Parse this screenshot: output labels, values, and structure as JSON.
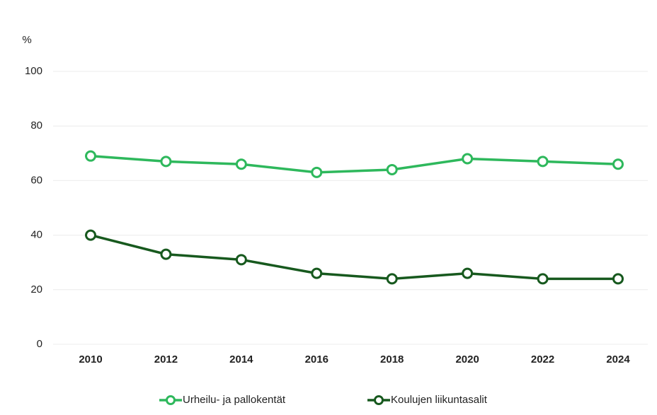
{
  "chart_data": {
    "type": "line",
    "y_axis_label": "%",
    "categories": [
      "2010",
      "2012",
      "2014",
      "2016",
      "2018",
      "2020",
      "2022",
      "2024"
    ],
    "series": [
      {
        "name": "Urheilu- ja pallokentät",
        "color": "#2eb85c",
        "values": [
          69,
          67,
          66,
          63,
          64,
          68,
          67,
          66
        ]
      },
      {
        "name": "Koulujen liikuntasalit",
        "color": "#17591e",
        "values": [
          40,
          33,
          31,
          26,
          24,
          26,
          24,
          24
        ]
      }
    ],
    "ylim": [
      0,
      100
    ],
    "yticks": [
      0,
      20,
      40,
      60,
      80,
      100
    ],
    "grid": true,
    "legend": "bottom"
  }
}
